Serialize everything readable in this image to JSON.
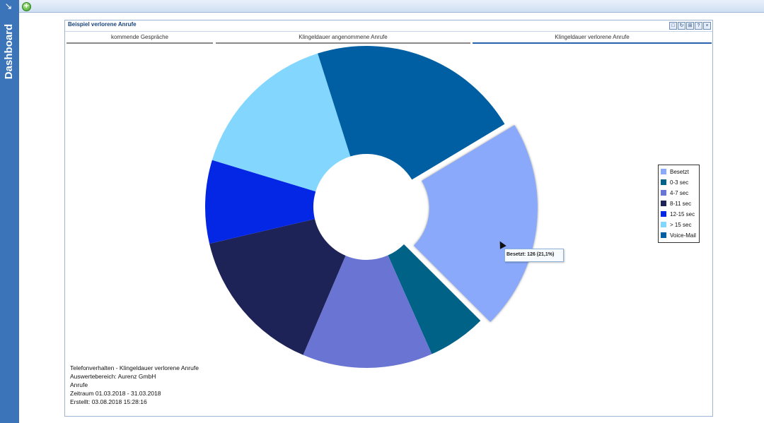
{
  "app": {
    "sidebar_title": "Dashboard",
    "add_icon": "add-icon"
  },
  "panel": {
    "title": "Beispiel verlorene Anrufe",
    "tools": [
      "copy-icon",
      "refresh-icon",
      "print-icon",
      "help-icon",
      "close-icon"
    ],
    "tabs": [
      {
        "label": "kommende Gespräche",
        "active": false
      },
      {
        "label": "Klingeldauer angenommene Anrufe",
        "active": false
      },
      {
        "label": "Klingeldauer verlorene Anrufe",
        "active": true
      }
    ]
  },
  "chart_data": {
    "type": "pie",
    "donut": true,
    "legend_position": "right",
    "highlighted_slice": "Besetzt",
    "tooltip": "Besetzt: 126 (21,1%)",
    "series": [
      {
        "name": "Besetzt",
        "value": 126,
        "color": "#8aa9fb"
      },
      {
        "name": "0-3 sec",
        "value": 35,
        "color": "#006286"
      },
      {
        "name": "4-7 sec",
        "value": 78,
        "color": "#6a75d3"
      },
      {
        "name": "8-11 sec",
        "value": 89,
        "color": "#1d2257"
      },
      {
        "name": "12-15 sec",
        "value": 50,
        "color": "#0327e5"
      },
      {
        "name": "> 15 sec",
        "value": 92,
        "color": "#83d6fe"
      },
      {
        "name": "Voice-Mail",
        "value": 127,
        "color": "#005fa3"
      }
    ],
    "info": [
      "Telefonverhalten - Klingeldauer verlorene Anrufe",
      "Auswertebereich: Aurenz GmbH",
      "Anrufe",
      "Zeitraum 01.03.2018 - 31.03.2018",
      "Erstellt: 03.08.2018 15:28:16"
    ]
  }
}
